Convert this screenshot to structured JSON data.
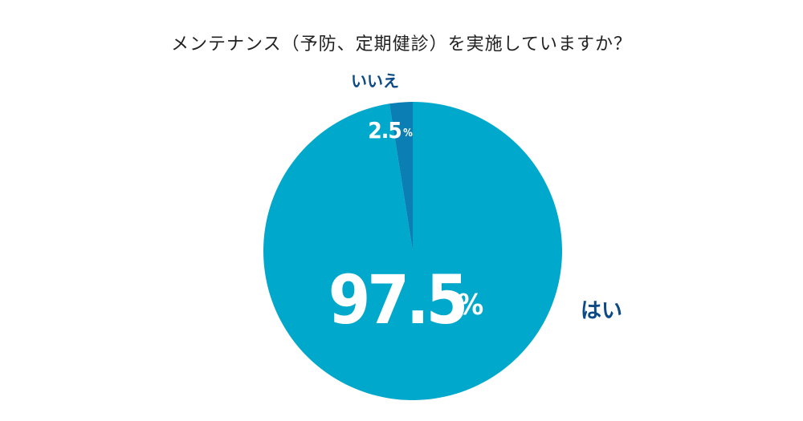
{
  "chart_data": {
    "type": "pie",
    "title": "メンテナンス（予防、定期健診）を実施していますか？",
    "unit": "%",
    "slices": [
      {
        "label": "はい",
        "value": 97.5,
        "color": "#00a9cc"
      },
      {
        "label": "いいえ",
        "value": 2.5,
        "color": "#0b7fb3"
      }
    ]
  }
}
